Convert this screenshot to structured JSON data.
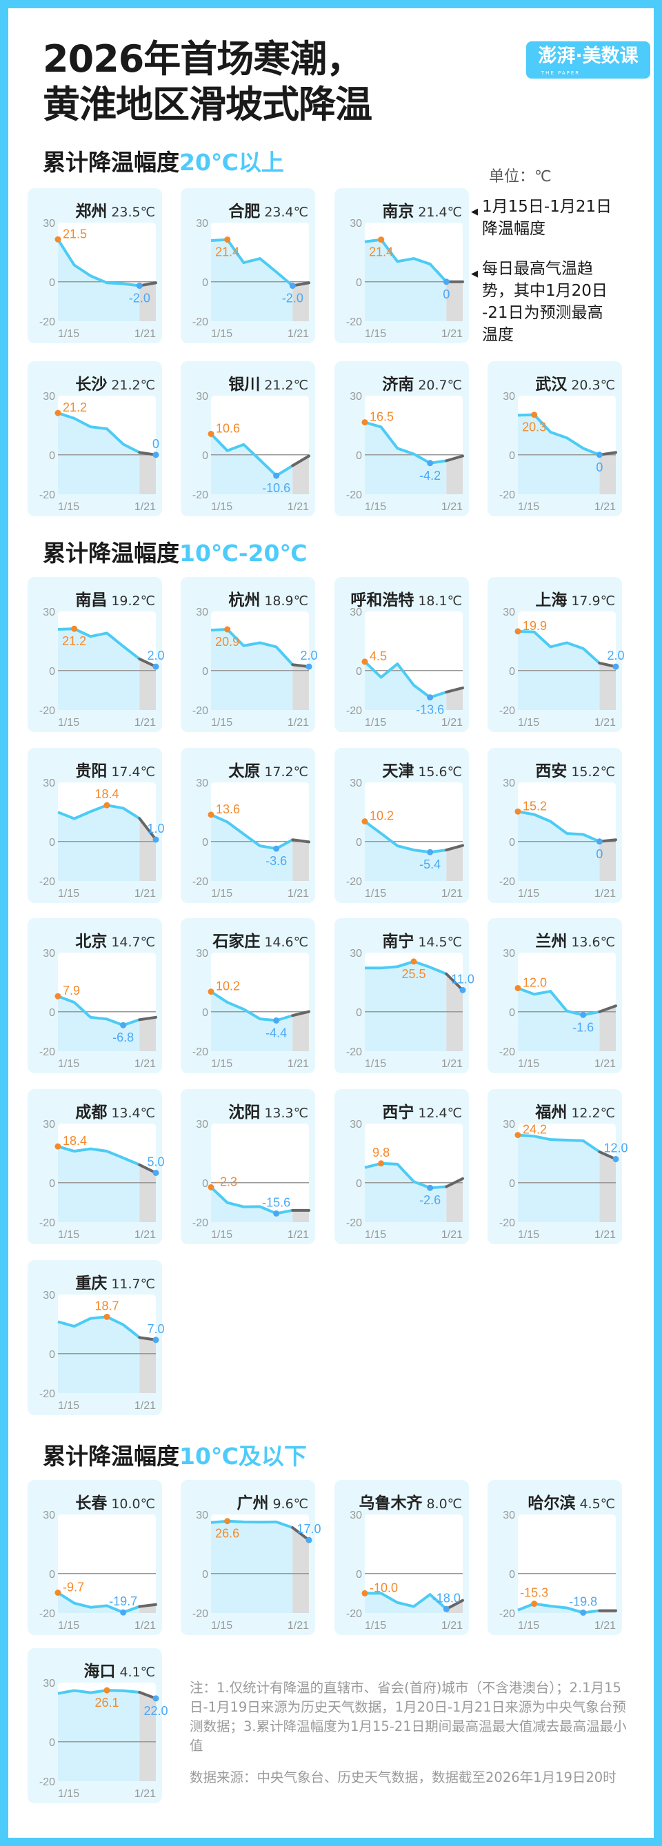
{
  "title": {
    "line1": "2026年首场寒潮，",
    "line2": "黄淮地区滑坡式降温"
  },
  "logo": {
    "text": "澎湃·美数课",
    "sub": "THE PAPER"
  },
  "unit": "单位：℃",
  "legend": {
    "drop": [
      "1月15日-1月21日",
      "降温幅度"
    ],
    "trend": [
      "每日最高气温趋",
      "势，其中1月20日",
      "-21日为预测最高",
      "温度"
    ]
  },
  "sections": [
    {
      "prefix": "累计降温幅度",
      "highlight": "20℃以上"
    },
    {
      "prefix": "累计降温幅度",
      "highlight": "10℃-20℃"
    },
    {
      "prefix": "累计降温幅度",
      "highlight": "10℃及以下"
    }
  ],
  "colors": {
    "frame": "#4dcbfb",
    "line": "#4ccbf5",
    "forecast_line": "#666666",
    "max": "#f5892a",
    "min": "#4aa8f5",
    "card": "#e6f8fe",
    "area": "#d4f2fd",
    "forecast_area": "#dcdcdc"
  },
  "notes": {
    "note": "注：1.仅统计有降温的直辖市、省会(首府)城市（不含港澳台）；2.1月15日-1月19日来源为历史天气数据，1月20日-1月21日来源为中央气象台预测数据；3.累计降温幅度为1月15-21日期间最高温最大值减去最高温最小值",
    "source": "数据来源：中央气象台、历史天气数据，数据截至2026年1月19日20时"
  },
  "chart_data": {
    "type": "line",
    "x": [
      "1/15",
      "1/16",
      "1/17",
      "1/18",
      "1/19",
      "1/20",
      "1/21"
    ],
    "xtick_labels": [
      "1/15",
      "1/21"
    ],
    "ylim": [
      -20,
      30
    ],
    "yticks": [
      "30",
      "0",
      "-20"
    ],
    "forecast_from": "1/20",
    "series": [
      {
        "name": "郑州",
        "drop": "23.5℃",
        "group": 0,
        "values": [
          21.5,
          8.5,
          3.0,
          -0.5,
          -1.0,
          -2.0,
          -0.5
        ]
      },
      {
        "name": "合肥",
        "drop": "23.4℃",
        "group": 0,
        "values": [
          20.9,
          21.4,
          9.7,
          11.8,
          5.0,
          -2.0,
          -0.5
        ]
      },
      {
        "name": "南京",
        "drop": "21.4℃",
        "group": 0,
        "values": [
          20.3,
          21.4,
          10.3,
          11.8,
          9.0,
          0,
          0
        ]
      },
      {
        "name": "长沙",
        "drop": "21.2℃",
        "group": 0,
        "values": [
          21.2,
          18.5,
          14.2,
          13.2,
          5.4,
          1.2,
          0
        ]
      },
      {
        "name": "银川",
        "drop": "21.2℃",
        "group": 0,
        "values": [
          10.6,
          2.1,
          5.2,
          -2.6,
          -10.6,
          -5.5,
          -0.6
        ]
      },
      {
        "name": "济南",
        "drop": "20.7℃",
        "group": 0,
        "values": [
          16.5,
          14.1,
          3.3,
          0.4,
          -4.2,
          -3.0,
          -0.6
        ]
      },
      {
        "name": "武汉",
        "drop": "20.3℃",
        "group": 0,
        "values": [
          20.1,
          20.3,
          11.5,
          8.6,
          3.3,
          0,
          1.2
        ]
      },
      {
        "name": "南昌",
        "drop": "19.2℃",
        "group": 1,
        "values": [
          20.9,
          21.2,
          17.3,
          19.0,
          12.3,
          5.9,
          2.0
        ]
      },
      {
        "name": "杭州",
        "drop": "18.9℃",
        "group": 1,
        "values": [
          20.5,
          20.9,
          12.6,
          14.1,
          12.0,
          3.0,
          2.0
        ]
      },
      {
        "name": "呼和浩特",
        "drop": "18.1℃",
        "group": 1,
        "values": [
          4.5,
          -3.4,
          3.4,
          -7.4,
          -13.6,
          -10.9,
          -8.8
        ]
      },
      {
        "name": "上海",
        "drop": "17.9℃",
        "group": 1,
        "values": [
          19.9,
          19.6,
          12.0,
          14.1,
          11.2,
          3.8,
          2.0
        ]
      },
      {
        "name": "贵阳",
        "drop": "17.4℃",
        "group": 1,
        "values": [
          14.9,
          11.6,
          15.2,
          18.4,
          16.9,
          11.7,
          1.0
        ]
      },
      {
        "name": "太原",
        "drop": "17.2℃",
        "group": 1,
        "values": [
          13.6,
          9.9,
          3.8,
          -2.2,
          -3.6,
          0.9,
          -0.2
        ]
      },
      {
        "name": "天津",
        "drop": "15.6℃",
        "group": 1,
        "values": [
          10.2,
          4.1,
          -2.2,
          -4.3,
          -5.4,
          -4.3,
          -2.0
        ]
      },
      {
        "name": "西安",
        "drop": "15.2℃",
        "group": 1,
        "values": [
          15.2,
          13.7,
          10.2,
          4.1,
          3.6,
          0,
          0.9
        ]
      },
      {
        "name": "北京",
        "drop": "14.7℃",
        "group": 1,
        "values": [
          7.9,
          4.8,
          -2.8,
          -3.7,
          -6.8,
          -4.0,
          -2.8
        ]
      },
      {
        "name": "石家庄",
        "drop": "14.6℃",
        "group": 1,
        "values": [
          10.2,
          4.8,
          1.3,
          -3.6,
          -4.4,
          -1.9,
          0.1
        ]
      },
      {
        "name": "南宁",
        "drop": "14.5℃",
        "group": 1,
        "values": [
          22.2,
          22.2,
          22.9,
          25.5,
          22.6,
          19.2,
          11.0
        ]
      },
      {
        "name": "兰州",
        "drop": "13.6℃",
        "group": 1,
        "values": [
          12.0,
          8.9,
          10.4,
          0.4,
          -1.6,
          0,
          3.0
        ]
      },
      {
        "name": "成都",
        "drop": "13.4℃",
        "group": 1,
        "values": [
          18.4,
          16.0,
          17.2,
          16.0,
          12.6,
          9.1,
          5.0
        ]
      },
      {
        "name": "沈阳",
        "drop": "13.3℃",
        "group": 1,
        "values": [
          -2.3,
          -10.1,
          -12.2,
          -12.1,
          -15.6,
          -14.0,
          -14.0
        ]
      },
      {
        "name": "西宁",
        "drop": "12.4℃",
        "group": 1,
        "values": [
          7.7,
          9.8,
          9.4,
          0.6,
          -2.6,
          -2.0,
          2.1
        ]
      },
      {
        "name": "福州",
        "drop": "12.2℃",
        "group": 1,
        "values": [
          24.2,
          23.6,
          21.9,
          21.6,
          21.3,
          15.7,
          12.0
        ]
      },
      {
        "name": "重庆",
        "drop": "11.7℃",
        "group": 1,
        "values": [
          16.2,
          13.9,
          17.9,
          18.7,
          14.7,
          8.2,
          7.0
        ]
      },
      {
        "name": "长春",
        "drop": "10.0℃",
        "group": 2,
        "values": [
          -9.7,
          -15.0,
          -17.1,
          -16.3,
          -19.7,
          -16.7,
          -15.7
        ]
      },
      {
        "name": "广州",
        "drop": "9.6℃",
        "group": 2,
        "values": [
          25.9,
          26.6,
          26.2,
          26.1,
          26.2,
          23.3,
          17.0
        ]
      },
      {
        "name": "乌鲁木齐",
        "drop": "8.0℃",
        "group": 2,
        "values": [
          -10.0,
          -10.0,
          -14.7,
          -16.7,
          -10.6,
          -18.0,
          -13.6
        ]
      },
      {
        "name": "哈尔滨",
        "drop": "4.5℃",
        "group": 2,
        "values": [
          -18.5,
          -15.3,
          -16.5,
          -17.4,
          -19.8,
          -18.8,
          -18.8
        ]
      },
      {
        "name": "海口",
        "drop": "4.1℃",
        "group": 2,
        "values": [
          24.5,
          26.0,
          24.9,
          26.1,
          25.9,
          25.1,
          22.0
        ]
      }
    ]
  }
}
